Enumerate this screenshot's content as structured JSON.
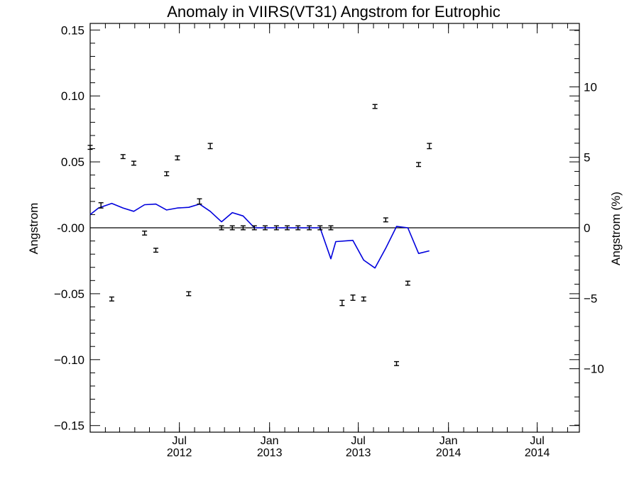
{
  "chart_data": {
    "type": "line",
    "title": "Anomaly in VIIRS(VT31) Angstrom for Eutrophic",
    "ylabel": "Angstrom",
    "y2label": "Angstrom (%)",
    "xlabel": "",
    "xlim": [
      "2012-01-01",
      "2014-09-25"
    ],
    "ylim": [
      -0.155,
      0.155
    ],
    "y2lim": [
      -14.5,
      14.5
    ],
    "yticks": [
      -0.15,
      -0.1,
      -0.05,
      0.0,
      0.05,
      0.1,
      0.15
    ],
    "yticklabels": [
      "−0.15",
      "−0.10",
      "−0.05",
      "-0.00",
      "0.05",
      "0.10",
      "0.15"
    ],
    "y2ticks": [
      -10,
      -5,
      0,
      5,
      10
    ],
    "y2ticklabels": [
      "−10",
      "−5",
      "0",
      "5",
      "10"
    ],
    "xticks": [
      {
        "date": "2012-07-01",
        "label": [
          "Jul",
          "2012"
        ]
      },
      {
        "date": "2013-01-01",
        "label": [
          "Jan",
          "2013"
        ]
      },
      {
        "date": "2013-07-01",
        "label": [
          "Jul",
          "2013"
        ]
      },
      {
        "date": "2014-01-01",
        "label": [
          "Jan",
          "2014"
        ]
      },
      {
        "date": "2014-07-01",
        "label": [
          "Jul",
          "2014"
        ]
      }
    ],
    "zero_line": true,
    "grid": false,
    "line_color": "#0000dd",
    "marker_color": "#000000",
    "series": [
      {
        "kind": "errorbar",
        "color": "#000000",
        "points": [
          {
            "x": "2012-01-01",
            "y": 0.061,
            "err": 0.0015
          },
          {
            "x": "2012-01-23",
            "y": 0.017,
            "err": 0.002
          },
          {
            "x": "2012-02-14",
            "y": -0.054,
            "err": 0.0015
          },
          {
            "x": "2012-03-08",
            "y": 0.054,
            "err": 0.0015
          },
          {
            "x": "2012-03-30",
            "y": 0.049,
            "err": 0.0015
          },
          {
            "x": "2012-04-21",
            "y": -0.004,
            "err": 0.0015
          },
          {
            "x": "2012-05-14",
            "y": -0.017,
            "err": 0.0015
          },
          {
            "x": "2012-06-05",
            "y": 0.041,
            "err": 0.0015
          },
          {
            "x": "2012-06-27",
            "y": 0.053,
            "err": 0.0015
          },
          {
            "x": "2012-07-20",
            "y": -0.05,
            "err": 0.0015
          },
          {
            "x": "2012-08-11",
            "y": 0.02,
            "err": 0.002
          },
          {
            "x": "2012-09-02",
            "y": 0.062,
            "err": 0.002
          },
          {
            "x": "2012-09-25",
            "y": 0.0,
            "err": 0.0015
          },
          {
            "x": "2012-10-17",
            "y": 0.0,
            "err": 0.0015
          },
          {
            "x": "2012-11-08",
            "y": 0.0,
            "err": 0.0015
          },
          {
            "x": "2012-12-01",
            "y": 0.0,
            "err": 0.0015
          },
          {
            "x": "2012-12-23",
            "y": 0.0,
            "err": 0.0015
          },
          {
            "x": "2013-01-15",
            "y": 0.0,
            "err": 0.0015
          },
          {
            "x": "2013-02-06",
            "y": 0.0,
            "err": 0.0015
          },
          {
            "x": "2013-02-28",
            "y": 0.0,
            "err": 0.0015
          },
          {
            "x": "2013-03-23",
            "y": 0.0,
            "err": 0.0015
          },
          {
            "x": "2013-04-14",
            "y": 0.0,
            "err": 0.0015
          },
          {
            "x": "2013-05-06",
            "y": 0.0,
            "err": 0.0015
          },
          {
            "x": "2013-05-29",
            "y": -0.057,
            "err": 0.002
          },
          {
            "x": "2013-06-20",
            "y": -0.053,
            "err": 0.002
          },
          {
            "x": "2013-07-12",
            "y": -0.054,
            "err": 0.0015
          },
          {
            "x": "2013-08-04",
            "y": 0.092,
            "err": 0.0015
          },
          {
            "x": "2013-08-26",
            "y": 0.006,
            "err": 0.0015
          },
          {
            "x": "2013-09-17",
            "y": -0.103,
            "err": 0.0015
          },
          {
            "x": "2013-10-10",
            "y": -0.042,
            "err": 0.0015
          },
          {
            "x": "2013-11-01",
            "y": 0.048,
            "err": 0.0015
          },
          {
            "x": "2013-11-23",
            "y": 0.062,
            "err": 0.002
          }
        ]
      },
      {
        "kind": "line",
        "color": "#0000dd",
        "points": [
          {
            "x": "2012-01-01",
            "y": 0.01
          },
          {
            "x": "2012-01-18",
            "y": 0.015
          },
          {
            "x": "2012-02-14",
            "y": 0.0185
          },
          {
            "x": "2012-03-08",
            "y": 0.015
          },
          {
            "x": "2012-03-30",
            "y": 0.0125
          },
          {
            "x": "2012-04-21",
            "y": 0.0175
          },
          {
            "x": "2012-05-14",
            "y": 0.018
          },
          {
            "x": "2012-06-05",
            "y": 0.0135
          },
          {
            "x": "2012-06-27",
            "y": 0.015
          },
          {
            "x": "2012-07-20",
            "y": 0.0155
          },
          {
            "x": "2012-08-11",
            "y": 0.018
          },
          {
            "x": "2012-09-02",
            "y": 0.0125
          },
          {
            "x": "2012-09-25",
            "y": 0.0045
          },
          {
            "x": "2012-10-17",
            "y": 0.0115
          },
          {
            "x": "2012-11-08",
            "y": 0.009
          },
          {
            "x": "2012-12-01",
            "y": 0.0
          },
          {
            "x": "2012-12-23",
            "y": 0.0
          },
          {
            "x": "2013-01-15",
            "y": 0.0
          },
          {
            "x": "2013-02-06",
            "y": 0.0
          },
          {
            "x": "2013-02-28",
            "y": 0.0
          },
          {
            "x": "2013-03-23",
            "y": 0.0
          },
          {
            "x": "2013-04-14",
            "y": 0.0
          },
          {
            "x": "2013-05-06",
            "y": -0.0235
          },
          {
            "x": "2013-05-16",
            "y": -0.0105
          },
          {
            "x": "2013-06-20",
            "y": -0.0095
          },
          {
            "x": "2013-07-12",
            "y": -0.0245
          },
          {
            "x": "2013-08-04",
            "y": -0.0305
          },
          {
            "x": "2013-08-26",
            "y": -0.0155
          },
          {
            "x": "2013-09-17",
            "y": 0.001
          },
          {
            "x": "2013-10-10",
            "y": 0.0
          },
          {
            "x": "2013-11-01",
            "y": -0.0195
          },
          {
            "x": "2013-11-23",
            "y": -0.0175
          }
        ]
      }
    ]
  }
}
